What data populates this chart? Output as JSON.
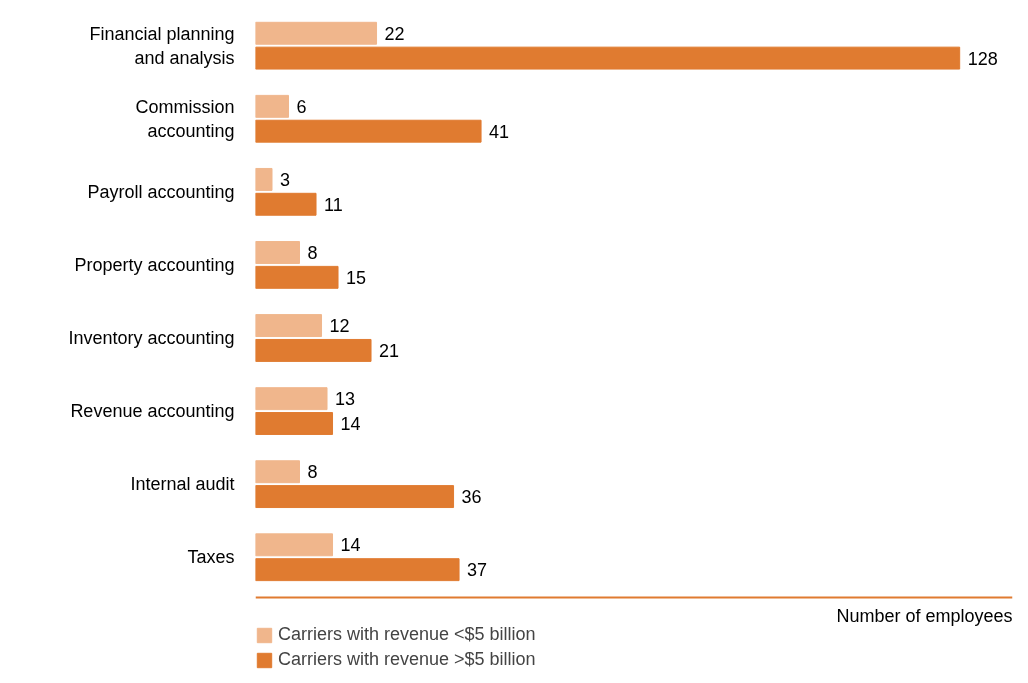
{
  "chart_data": {
    "type": "bar",
    "orientation": "horizontal",
    "categories": [
      "Financial planning and analysis",
      "Commission accounting",
      "Payroll accounting",
      "Property accounting",
      "Inventory accounting",
      "Revenue accounting",
      "Internal audit",
      "Taxes"
    ],
    "series": [
      {
        "name": "Carriers with revenue <$5 billion",
        "color": "#f0b68c",
        "values": [
          22,
          6,
          3,
          8,
          12,
          13,
          8,
          14
        ]
      },
      {
        "name": "Carriers with revenue >$5 billion",
        "color": "#e07b30",
        "values": [
          128,
          41,
          11,
          15,
          21,
          14,
          36,
          37
        ]
      }
    ],
    "xlabel": "Number of employees",
    "data_labels": true,
    "legend": "bottom",
    "grid": false
  }
}
